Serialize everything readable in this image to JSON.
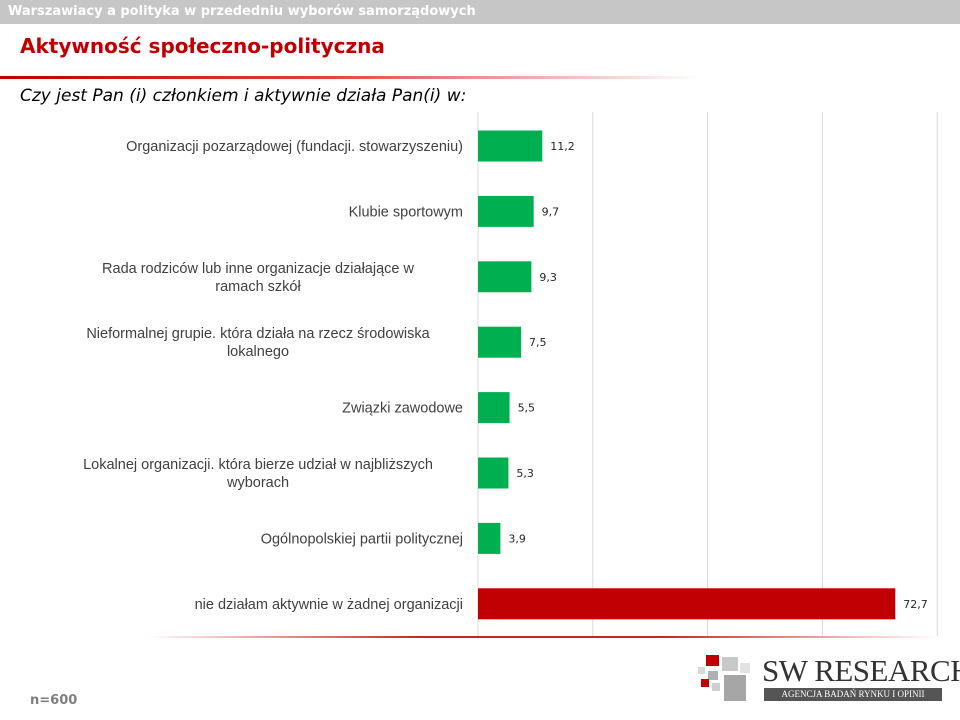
{
  "header": {
    "topbar_text": "Warszawiacy a polityka w przededniu wyborów samorządowych",
    "section_title": "Aktywność społeczno-polityczna",
    "question": "Czy jest Pan (i) członkiem i aktywnie działa Pan(i) w:"
  },
  "footer": {
    "sample": "n=600"
  },
  "logo": {
    "name": "SW RESEARCH",
    "tagline": "AGENCJA BADAŃ RYNKU I OPINII"
  },
  "colors": {
    "bar_default": "#00b050",
    "bar_highlight": "#c00000",
    "title": "#c00000",
    "topbar": "#c6c6c6"
  },
  "chart_data": {
    "type": "bar",
    "orientation": "horizontal",
    "categories": [
      "Organizacji pozarządowej (fundacji. stowarzyszeniu)",
      "Klubie sportowym",
      "Rada rodziców lub inne organizacje działające w ramach szkół",
      "Nieformalnej grupie. która działa na rzecz środowiska lokalnego",
      "Związki zawodowe",
      "Lokalnej organizacji. która bierze udział w najbliższych wyborach",
      "Ogólnopolskiej partii politycznej",
      "nie działam aktywnie w żadnej organizacji"
    ],
    "category_lines": [
      [
        "Organizacji pozarządowej (fundacji. stowarzyszeniu)"
      ],
      [
        "Klubie sportowym"
      ],
      [
        "Rada rodziców lub inne organizacje działające w",
        "ramach szkół"
      ],
      [
        "Nieformalnej grupie. która działa na rzecz środowiska",
        "lokalnego"
      ],
      [
        "Związki zawodowe"
      ],
      [
        "Lokalnej organizacji. która bierze udział w najbliższych",
        "wyborach"
      ],
      [
        "Ogólnopolskiej partii politycznej"
      ],
      [
        "nie działam aktywnie w żadnej organizacji"
      ]
    ],
    "values": [
      11.2,
      9.7,
      9.3,
      7.5,
      5.5,
      5.3,
      3.9,
      72.7
    ],
    "value_labels": [
      "11,2",
      "9,7",
      "9,3",
      "7,5",
      "5,5",
      "5,3",
      "3,9",
      "72,7"
    ],
    "highlight_index": 7,
    "xlim": [
      0,
      80
    ],
    "gridlines": [
      0,
      20,
      40,
      60,
      80
    ],
    "grid": true,
    "legend": false
  }
}
